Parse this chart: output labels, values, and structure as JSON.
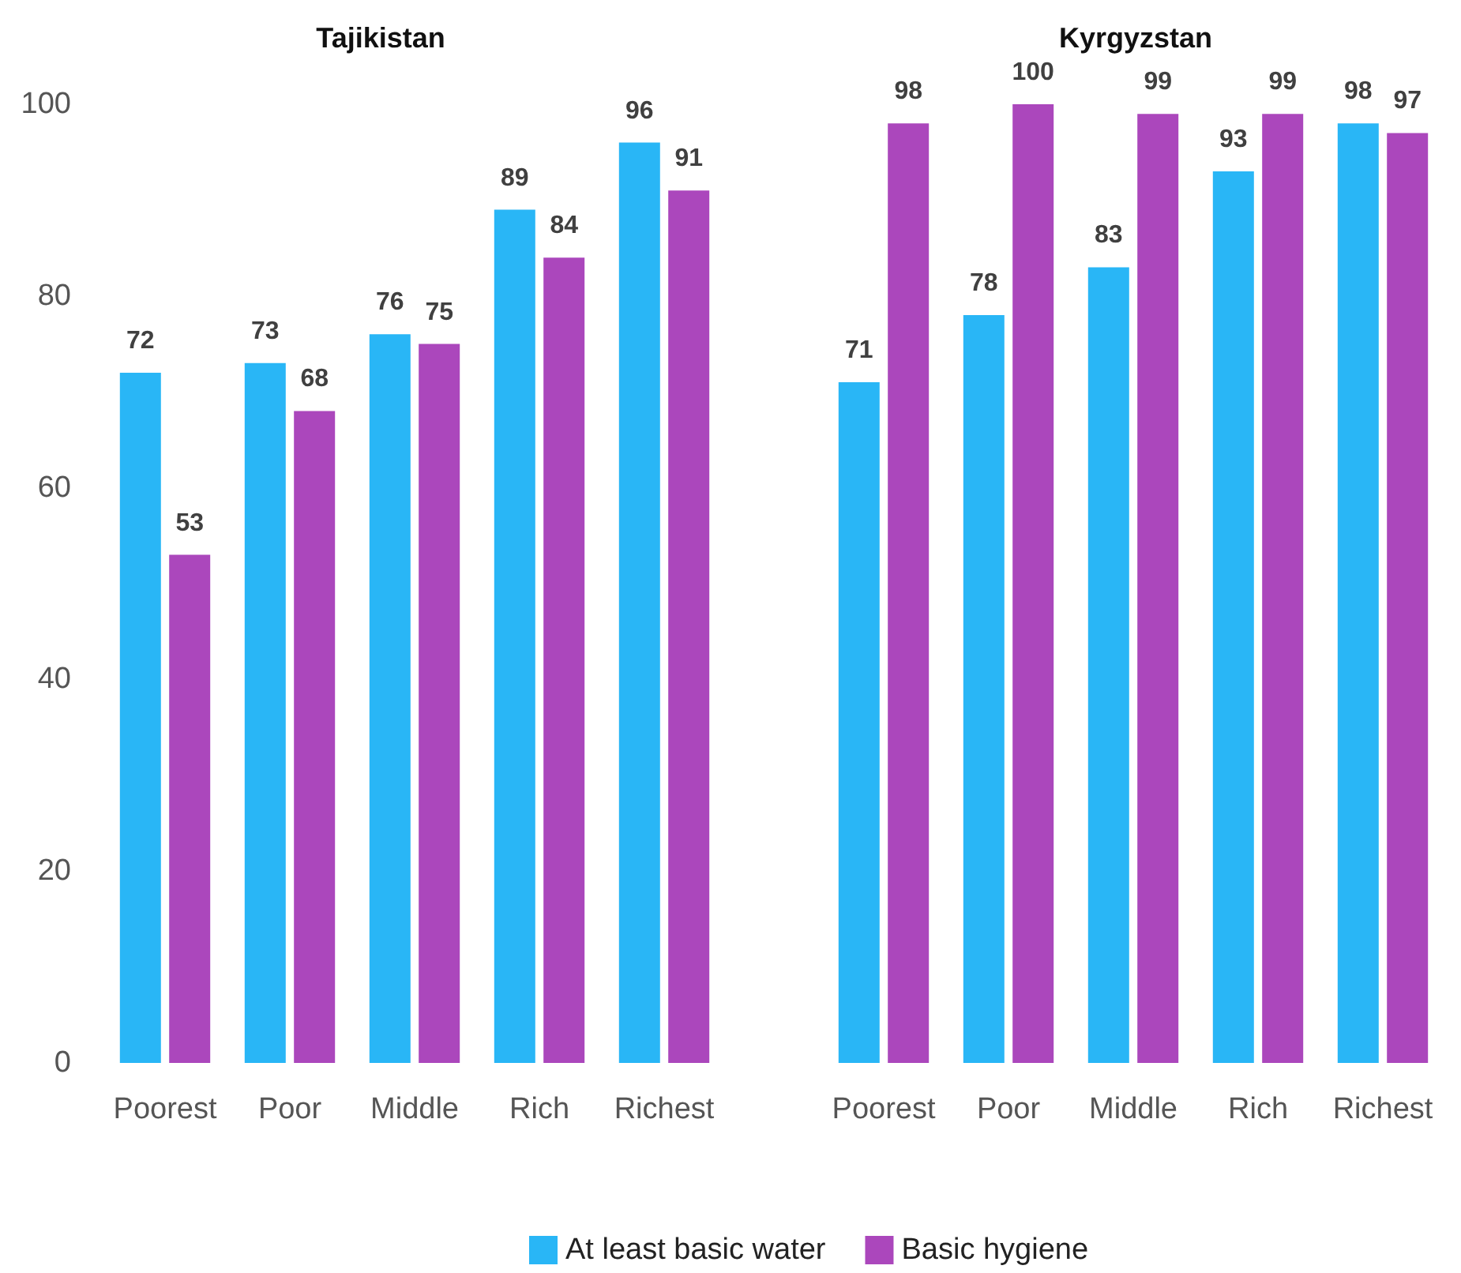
{
  "chart_data": [
    {
      "type": "bar",
      "title": "Tajikistan",
      "categories": [
        "Poorest",
        "Poor",
        "Middle",
        "Rich",
        "Richest"
      ],
      "series": [
        {
          "color": "#29b6f6",
          "values": [
            72,
            73,
            76,
            89,
            96
          ]
        },
        {
          "color": "#ab47bc",
          "values": [
            53,
            68,
            75,
            84,
            91
          ]
        }
      ],
      "ylim": [
        0,
        100
      ],
      "yticks": [
        0,
        20,
        40,
        60,
        80,
        100
      ],
      "grid": false,
      "data_labels": true,
      "legend": false
    },
    {
      "type": "bar",
      "title": "Kyrgyzstan",
      "categories": [
        "Poorest",
        "Poor",
        "Middle",
        "Rich",
        "Richest"
      ],
      "series": [
        {
          "name": "At least basic water",
          "color": "#29b6f6",
          "values": [
            71,
            78,
            83,
            93,
            98
          ]
        },
        {
          "name": "Basic hygiene",
          "color": "#ab47bc",
          "values": [
            98,
            100,
            99,
            99,
            97
          ]
        }
      ],
      "ylim": [
        0,
        100
      ],
      "yticks": [
        0,
        20,
        40,
        60,
        80,
        100
      ],
      "grid": false,
      "data_labels": true,
      "legend": "bottom",
      "tick_labels": "x"
    }
  ]
}
